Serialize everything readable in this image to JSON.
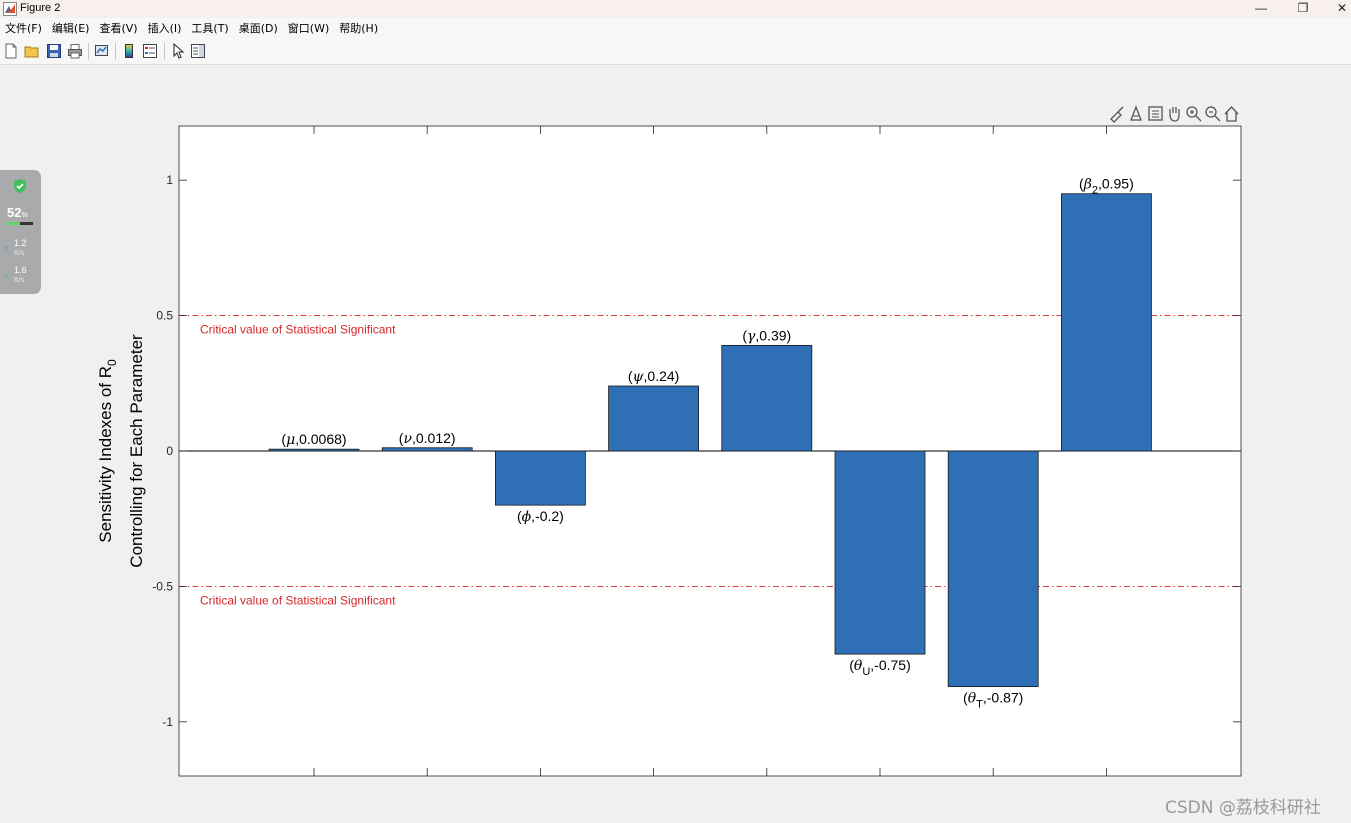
{
  "window": {
    "title": "Figure 2",
    "minimize": "—",
    "maximize": "❐",
    "close": "✕"
  },
  "menu": [
    "文件(F)",
    "编辑(E)",
    "查看(V)",
    "插入(I)",
    "工具(T)",
    "桌面(D)",
    "窗口(W)",
    "帮助(H)"
  ],
  "toolbar_icons": [
    "new-figure-icon",
    "open-file-icon",
    "save-icon",
    "print-icon",
    "link-plot-icon",
    "colorbar-icon",
    "legend-icon",
    "pointer-icon",
    "property-editor-icon"
  ],
  "axes_toolbar_icons": [
    "brush-icon",
    "data-cursor-icon",
    "export-icon",
    "pan-icon",
    "zoom-in-icon",
    "zoom-out-icon",
    "home-icon"
  ],
  "side_widget": {
    "percent": "52",
    "percent_unit": "%",
    "up_rate": "1.2",
    "down_rate": "1.6",
    "rate_unit": "K/s",
    "level": 0.52
  },
  "watermark": "CSDN @荔枝科研社",
  "colors": {
    "bar": "#2e6fb6",
    "critical_line": "#d62728",
    "background": "#f0f0f0"
  },
  "chart_data": {
    "type": "bar",
    "ylabel_line1": "Sensitivity Indexes of R",
    "ylabel_sub": "0",
    "ylabel_line2": "Controlling for Each Parameter",
    "ylim": [
      -1.2,
      1.2
    ],
    "yticks": [
      -1,
      -0.5,
      0,
      0.5,
      1
    ],
    "ytick_labels": [
      "-1",
      "-0.5",
      "0",
      "0.5",
      "1"
    ],
    "grid": false,
    "bars": [
      {
        "symbol": "μ",
        "sub": "",
        "value": 0.0068,
        "value_label": "0.0068"
      },
      {
        "symbol": "ν",
        "sub": "",
        "value": 0.012,
        "value_label": "0.012"
      },
      {
        "symbol": "ϕ",
        "sub": "",
        "value": -0.2,
        "value_label": "-0.2"
      },
      {
        "symbol": "ψ",
        "sub": "",
        "value": 0.24,
        "value_label": "0.24"
      },
      {
        "symbol": "γ",
        "sub": "",
        "value": 0.39,
        "value_label": "0.39"
      },
      {
        "symbol": "θ",
        "sub": "U",
        "value": -0.75,
        "value_label": "-0.75"
      },
      {
        "symbol": "θ",
        "sub": "T",
        "value": -0.87,
        "value_label": "-0.87"
      },
      {
        "symbol": "β",
        "sub": "2",
        "value": 0.95,
        "value_label": "0.95"
      }
    ],
    "critical_lines": [
      {
        "value": 0.5,
        "label": "Critical value of Statistical Significant"
      },
      {
        "value": -0.5,
        "label": "Critical value of Statistical Significant"
      }
    ]
  }
}
